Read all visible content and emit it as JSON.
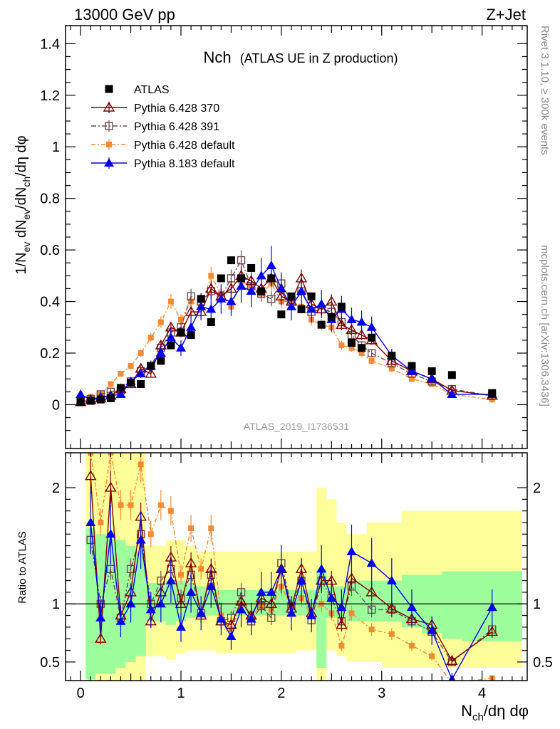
{
  "chart_data": {
    "type": "scatter",
    "header_left": "13000 GeV pp",
    "header_right": "Z+Jet",
    "title": "Nch",
    "title_sub": "(ATLAS UE in Z production)",
    "analysis_id": "ATLAS_2019_I1736531",
    "side_label_top": "Rivet 3.1.10, ≥ 300k events",
    "side_label_bottom": "mcplots.cern.ch [arXiv:1306.3436]",
    "ylabel_main": "1/N_ev dN_ev/dN_ch/dη dφ",
    "ylabel_ratio": "Ratio to ATLAS",
    "xlabel": "N_ch/dη dφ",
    "xlim": [
      -0.15,
      4.45
    ],
    "ylim_main": [
      -0.17,
      1.47
    ],
    "ylim_ratio": [
      0.34,
      2.3
    ],
    "main_y_ticks": [
      "0",
      "0.2",
      "0.4",
      "0.6",
      "0.8",
      "1",
      "1.2",
      "1.4"
    ],
    "ratio_y_ticks": [
      "0.5",
      "1",
      "2"
    ],
    "x_ticks": [
      "0",
      "1",
      "2",
      "3",
      "4"
    ],
    "legend": [
      "ATLAS",
      "Pythia 6.428 370",
      "Pythia 6.428 391",
      "Pythia 6.428 default",
      "Pythia 8.183 default"
    ],
    "colors": {
      "data": "#000000",
      "p370": "#800000",
      "p391": "#6b4a4a",
      "p6def": "#f58a30",
      "p8def": "#0000ee",
      "band_inner": "#9cff9c",
      "band_outer": "#ffff99"
    },
    "series": [
      {
        "name": "ATLAS",
        "x": [
          0.0,
          0.1,
          0.2,
          0.3,
          0.4,
          0.5,
          0.6,
          0.7,
          0.8,
          0.9,
          1.0,
          1.1,
          1.2,
          1.3,
          1.4,
          1.5,
          1.6,
          1.7,
          1.8,
          1.9,
          2.0,
          2.1,
          2.2,
          2.3,
          2.4,
          2.5,
          2.6,
          2.7,
          2.8,
          2.9,
          3.1,
          3.3,
          3.5,
          3.7,
          4.1
        ],
        "y": [
          0.01,
          0.015,
          0.02,
          0.025,
          0.065,
          0.085,
          0.08,
          0.15,
          0.17,
          0.23,
          0.28,
          0.27,
          0.41,
          0.32,
          0.49,
          0.56,
          0.49,
          0.53,
          0.44,
          0.49,
          0.35,
          0.42,
          0.37,
          0.42,
          0.31,
          0.34,
          0.38,
          0.24,
          0.22,
          0.26,
          0.19,
          0.15,
          0.13,
          0.115,
          0.045
        ]
      },
      {
        "name": "Pythia 6.428 370",
        "x": [
          0.0,
          0.1,
          0.2,
          0.3,
          0.4,
          0.5,
          0.6,
          0.7,
          0.8,
          0.9,
          1.0,
          1.1,
          1.2,
          1.3,
          1.4,
          1.5,
          1.6,
          1.7,
          1.8,
          1.9,
          2.0,
          2.1,
          2.2,
          2.3,
          2.4,
          2.5,
          2.6,
          2.7,
          2.8,
          2.9,
          3.1,
          3.3,
          3.5,
          3.7,
          4.1
        ],
        "y": [
          0.01,
          0.018,
          0.025,
          0.035,
          0.06,
          0.08,
          0.14,
          0.12,
          0.23,
          0.3,
          0.28,
          0.36,
          0.36,
          0.45,
          0.42,
          0.45,
          0.5,
          0.48,
          0.45,
          0.49,
          0.42,
          0.4,
          0.49,
          0.39,
          0.37,
          0.4,
          0.31,
          0.29,
          0.27,
          0.25,
          0.17,
          0.13,
          0.1,
          0.055,
          0.035
        ]
      },
      {
        "name": "Pythia 6.428 391",
        "x": [
          0.0,
          0.1,
          0.2,
          0.3,
          0.4,
          0.5,
          0.6,
          0.7,
          0.8,
          0.9,
          1.0,
          1.1,
          1.2,
          1.3,
          1.4,
          1.5,
          1.6,
          1.7,
          1.8,
          1.9,
          2.0,
          2.1,
          2.2,
          2.3,
          2.4,
          2.5,
          2.6,
          2.7,
          2.8,
          2.9,
          3.1,
          3.3,
          3.5,
          3.7,
          4.1
        ],
        "y": [
          0.01,
          0.022,
          0.04,
          0.05,
          0.055,
          0.09,
          0.13,
          0.15,
          0.22,
          0.28,
          0.3,
          0.42,
          0.4,
          0.44,
          0.42,
          0.49,
          0.56,
          0.46,
          0.43,
          0.41,
          0.47,
          0.4,
          0.44,
          0.36,
          0.37,
          0.36,
          0.32,
          0.27,
          0.23,
          0.2,
          0.16,
          0.12,
          0.09,
          0.06,
          0.035
        ]
      },
      {
        "name": "Pythia 6.428 default",
        "x": [
          0.0,
          0.1,
          0.2,
          0.3,
          0.4,
          0.5,
          0.6,
          0.7,
          0.8,
          0.9,
          1.0,
          1.1,
          1.2,
          1.3,
          1.4,
          1.5,
          1.6,
          1.7,
          1.8,
          1.9,
          2.0,
          2.1,
          2.2,
          2.3,
          2.4,
          2.5,
          2.6,
          2.7,
          2.8,
          2.9,
          3.1,
          3.3,
          3.5,
          3.7,
          4.1
        ],
        "y": [
          0.02,
          0.03,
          0.04,
          0.08,
          0.12,
          0.15,
          0.2,
          0.26,
          0.32,
          0.4,
          0.33,
          0.4,
          0.38,
          0.5,
          0.43,
          0.38,
          0.48,
          0.46,
          0.43,
          0.47,
          0.4,
          0.4,
          0.38,
          0.33,
          0.31,
          0.3,
          0.23,
          0.22,
          0.2,
          0.17,
          0.14,
          0.1,
          0.08,
          0.04,
          0.02
        ]
      },
      {
        "name": "Pythia 8.183 default",
        "x": [
          0.0,
          0.1,
          0.2,
          0.3,
          0.4,
          0.5,
          0.6,
          0.7,
          0.8,
          0.9,
          1.0,
          1.1,
          1.2,
          1.3,
          1.4,
          1.5,
          1.6,
          1.7,
          1.8,
          1.9,
          2.0,
          2.1,
          2.2,
          2.3,
          2.4,
          2.5,
          2.6,
          2.7,
          2.8,
          2.9,
          3.1,
          3.3,
          3.5,
          3.7,
          4.1
        ],
        "y": [
          0.04,
          0.02,
          0.03,
          0.035,
          0.04,
          0.09,
          0.12,
          0.15,
          0.2,
          0.26,
          0.22,
          0.3,
          0.38,
          0.37,
          0.41,
          0.4,
          0.46,
          0.44,
          0.5,
          0.54,
          0.45,
          0.38,
          0.44,
          0.37,
          0.39,
          0.33,
          0.37,
          0.33,
          0.32,
          0.3,
          0.19,
          0.13,
          0.1,
          0.04,
          0.04
        ]
      }
    ],
    "ratio_series": [
      {
        "name": "Pythia 6.428 370",
        "x": [
          0.1,
          0.2,
          0.3,
          0.4,
          0.5,
          0.6,
          0.7,
          0.8,
          0.9,
          1.0,
          1.1,
          1.2,
          1.3,
          1.4,
          1.5,
          1.6,
          1.7,
          1.8,
          1.9,
          2.0,
          2.1,
          2.2,
          2.3,
          2.4,
          2.5,
          2.6,
          2.7,
          2.9,
          3.1,
          3.3,
          3.5,
          3.7,
          4.1
        ],
        "y": [
          2.1,
          0.7,
          2.0,
          0.9,
          1.1,
          1.75,
          0.85,
          1.1,
          1.4,
          1.0,
          1.35,
          0.9,
          1.3,
          0.85,
          0.82,
          1.02,
          0.9,
          1.05,
          1.0,
          1.3,
          0.96,
          1.3,
          0.92,
          1.2,
          1.2,
          0.82,
          1.22,
          1.1,
          0.96,
          0.87,
          0.82,
          0.51,
          0.76
        ]
      },
      {
        "name": "Pythia 6.428 391",
        "x": [
          0.1,
          0.2,
          0.3,
          0.4,
          0.5,
          0.6,
          0.7,
          0.8,
          0.9,
          1.0,
          1.1,
          1.2,
          1.3,
          1.4,
          1.5,
          1.6,
          1.7,
          1.8,
          1.9,
          2.0,
          2.1,
          2.2,
          2.3,
          2.4,
          2.5,
          2.6,
          2.7,
          2.9,
          3.1,
          3.3,
          3.5,
          3.7,
          4.1
        ],
        "y": [
          1.55,
          1.0,
          1.3,
          0.88,
          1.3,
          1.6,
          1.0,
          1.2,
          1.3,
          1.05,
          1.25,
          0.92,
          1.25,
          0.85,
          0.88,
          1.1,
          0.85,
          0.98,
          0.88,
          1.35,
          0.98,
          1.2,
          0.86,
          1.2,
          1.05,
          0.85,
          1.15,
          0.95,
          0.95,
          0.85,
          0.76,
          0.5,
          0.78
        ]
      },
      {
        "name": "Pythia 6.428 default",
        "x": [
          0.1,
          0.2,
          0.3,
          0.4,
          0.5,
          0.6,
          0.7,
          0.8,
          0.9,
          1.0,
          1.1,
          1.2,
          1.3,
          1.4,
          1.5,
          1.6,
          1.7,
          1.8,
          1.9,
          2.0,
          2.1,
          2.2,
          2.3,
          2.4,
          2.5,
          2.6,
          2.7,
          2.9,
          3.1,
          3.3,
          3.5,
          3.7,
          4.1
        ],
        "y": [
          2.3,
          1.7,
          2.3,
          1.85,
          1.85,
          2.2,
          1.6,
          1.85,
          1.8,
          1.25,
          1.65,
          1.3,
          1.65,
          0.9,
          0.78,
          1.0,
          0.9,
          0.98,
          0.95,
          1.15,
          0.98,
          1.05,
          0.9,
          1.0,
          0.92,
          0.64,
          0.92,
          0.78,
          0.74,
          0.64,
          0.55,
          0.32,
          0.36
        ]
      },
      {
        "name": "Pythia 8.183 default",
        "x": [
          0.1,
          0.2,
          0.3,
          0.4,
          0.5,
          0.6,
          0.7,
          0.8,
          0.9,
          1.0,
          1.1,
          1.2,
          1.3,
          1.4,
          1.5,
          1.6,
          1.7,
          1.8,
          1.9,
          2.0,
          2.1,
          2.2,
          2.3,
          2.4,
          2.5,
          2.6,
          2.7,
          2.9,
          3.1,
          3.3,
          3.5,
          3.7,
          4.1
        ],
        "y": [
          1.7,
          0.88,
          1.6,
          0.85,
          1.0,
          1.55,
          0.95,
          1.0,
          1.2,
          0.8,
          1.1,
          0.92,
          1.15,
          0.87,
          0.72,
          0.95,
          0.87,
          1.1,
          1.1,
          1.3,
          0.92,
          1.2,
          0.9,
          1.3,
          1.05,
          0.97,
          1.45,
          1.35,
          1.2,
          0.97,
          0.77,
          0.35,
          0.97
        ]
      }
    ],
    "band_x": [
      0.05,
      0.15,
      0.25,
      0.35,
      0.45,
      0.55,
      0.65,
      0.75,
      0.85,
      0.95,
      1.05,
      1.15,
      1.25,
      1.35,
      1.45,
      1.55,
      1.65,
      1.75,
      1.85,
      1.95,
      2.05,
      2.15,
      2.25,
      2.35,
      2.45,
      2.55,
      2.65,
      2.75,
      2.85,
      3.0,
      3.2,
      3.4,
      3.6,
      3.8,
      4.4
    ],
    "band_inner_lo": [
      0.35,
      0.4,
      0.4,
      0.45,
      0.5,
      0.55,
      0.85,
      0.85,
      0.82,
      0.85,
      0.88,
      0.88,
      0.9,
      0.9,
      0.9,
      0.9,
      0.9,
      0.9,
      0.9,
      0.9,
      0.9,
      0.9,
      0.9,
      0.45,
      0.88,
      0.88,
      0.85,
      0.85,
      0.85,
      0.85,
      0.8,
      0.75,
      0.7,
      0.68
    ],
    "band_inner_hi": [
      1.65,
      1.6,
      1.6,
      1.55,
      1.5,
      1.45,
      1.18,
      1.18,
      1.2,
      1.2,
      1.18,
      1.15,
      1.12,
      1.12,
      1.12,
      1.12,
      1.12,
      1.12,
      1.12,
      1.12,
      1.12,
      1.12,
      1.12,
      1.3,
      1.15,
      1.15,
      1.2,
      1.2,
      1.2,
      1.2,
      1.25,
      1.25,
      1.28,
      1.28
    ],
    "band_outer_lo": [
      0.34,
      0.34,
      0.34,
      0.34,
      0.34,
      0.34,
      0.55,
      0.55,
      0.52,
      0.58,
      0.6,
      0.6,
      0.6,
      0.58,
      0.58,
      0.58,
      0.58,
      0.58,
      0.58,
      0.58,
      0.58,
      0.6,
      0.6,
      0.34,
      0.6,
      0.55,
      0.5,
      0.5,
      0.5,
      0.45,
      0.45,
      0.45,
      0.45,
      0.45
    ],
    "band_outer_hi": [
      2.3,
      2.3,
      2.3,
      2.3,
      2.3,
      2.3,
      1.5,
      1.5,
      1.55,
      1.55,
      1.5,
      1.45,
      1.45,
      1.45,
      1.45,
      1.45,
      1.45,
      1.45,
      1.45,
      1.45,
      1.45,
      1.45,
      1.45,
      2.0,
      1.9,
      1.7,
      1.6,
      1.6,
      1.7,
      1.7,
      1.8,
      1.8,
      1.8,
      1.8
    ]
  }
}
